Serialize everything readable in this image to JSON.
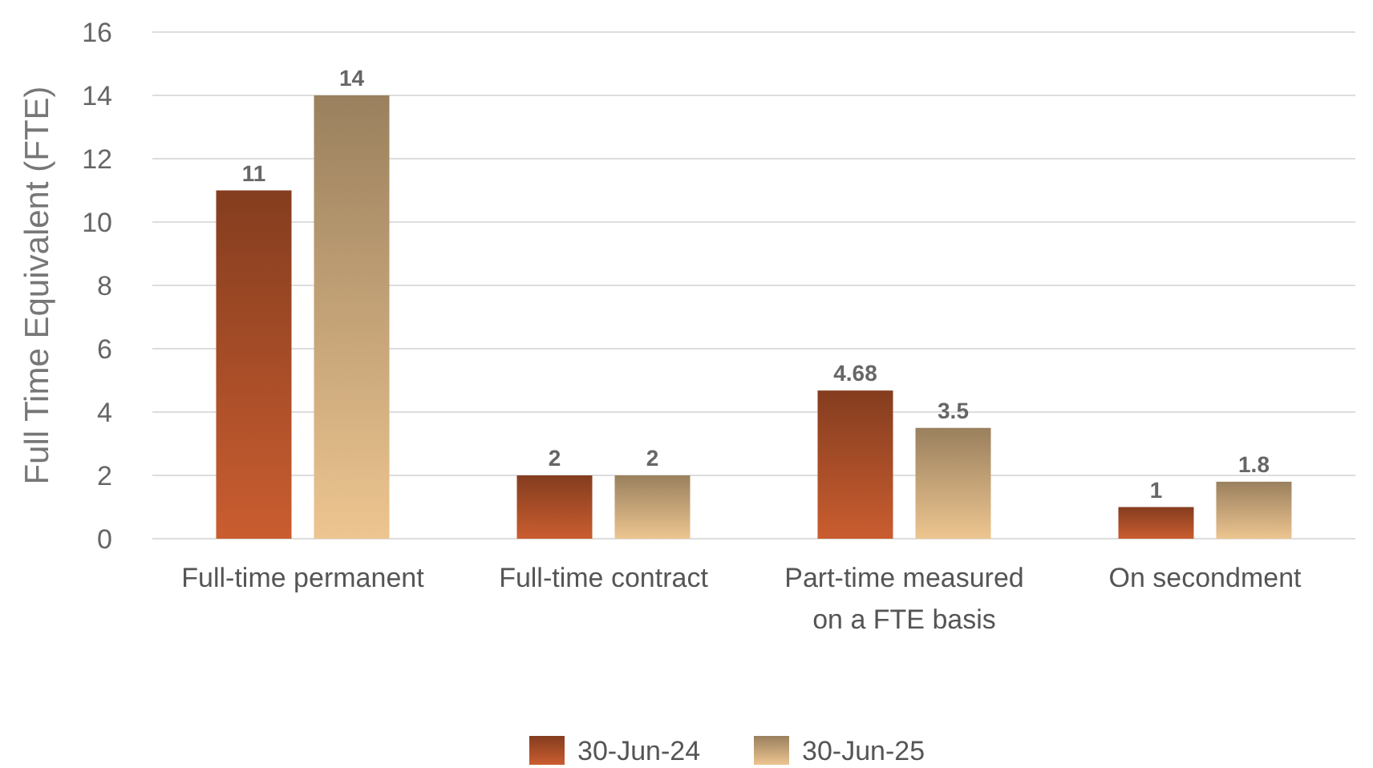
{
  "chart_data": {
    "type": "bar",
    "ylabel": "Full Time Equivalent (FTE)",
    "categories": [
      "Full-time permanent",
      "Full-time contract",
      "Part-time measured on a FTE basis",
      "On secondment"
    ],
    "series": [
      {
        "name": "30-Jun-24",
        "color": "#a34b27",
        "values": [
          11,
          2,
          4.68,
          1
        ]
      },
      {
        "name": "30-Jun-25",
        "color": "#bf9f74",
        "values": [
          14,
          2,
          3.5,
          1.8
        ]
      }
    ],
    "ylim": [
      0,
      16
    ],
    "yticks": [
      0,
      2,
      4,
      6,
      8,
      10,
      12,
      14,
      16
    ],
    "grid": "y",
    "legend": "bottom",
    "data_labels": true
  }
}
